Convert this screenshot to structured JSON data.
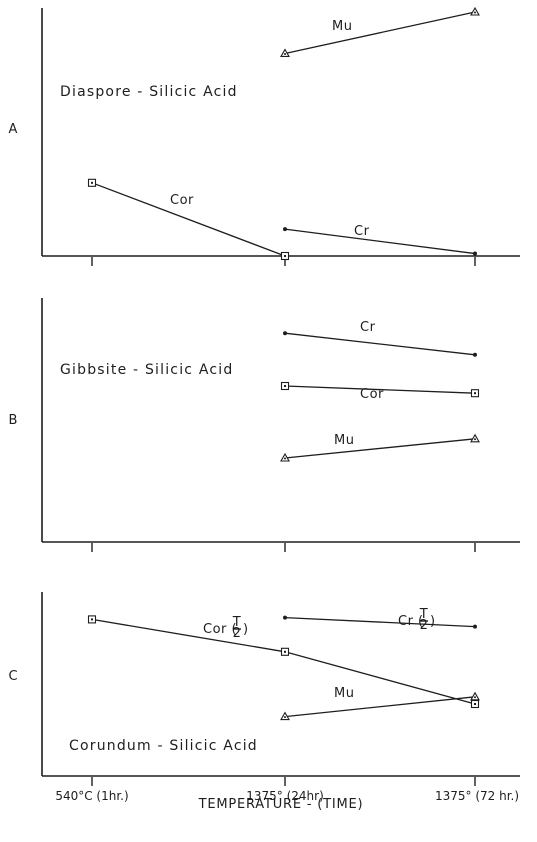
{
  "chart_data": {
    "type": "line",
    "xlabel": "TEMPERATURE - (TIME)",
    "categories": [
      "540°C (1hr.)",
      "1375° (24hr)",
      "1375° (72 hr.)"
    ],
    "value_axis_labeled": false,
    "grid": false,
    "panels": [
      {
        "letter": "A",
        "title": "Diaspore - Silicic Acid",
        "ylim": [
          0,
          100
        ],
        "series": [
          {
            "name": "Mu",
            "marker": "triangle",
            "values": [
              null,
              83,
              100
            ]
          },
          {
            "name": "Cor",
            "marker": "square",
            "values": [
              30,
              0,
              null
            ]
          },
          {
            "name": "Cr",
            "marker": "dot",
            "values": [
              null,
              11,
              1
            ]
          }
        ]
      },
      {
        "letter": "B",
        "title": "Gibbsite - Silicic Acid",
        "ylim": [
          0,
          100
        ],
        "series": [
          {
            "name": "Cr",
            "marker": "dot",
            "values": [
              null,
              87,
              78
            ]
          },
          {
            "name": "Cor",
            "marker": "square",
            "values": [
              null,
              65,
              62
            ]
          },
          {
            "name": "Mu",
            "marker": "triangle",
            "values": [
              null,
              35,
              43
            ]
          }
        ]
      },
      {
        "letter": "C",
        "title": "Corundum - Silicic Acid",
        "ylim": [
          0,
          100
        ],
        "series": [
          {
            "name": "Cor (T/2)",
            "marker": "square",
            "values": [
              87,
              69,
              40
            ]
          },
          {
            "name": "Cr (T/2)",
            "marker": "dot",
            "values": [
              null,
              88,
              83
            ]
          },
          {
            "name": "Mu",
            "marker": "triangle",
            "values": [
              null,
              33,
              44
            ]
          }
        ]
      }
    ]
  }
}
